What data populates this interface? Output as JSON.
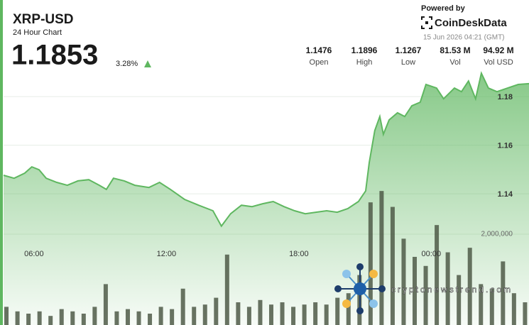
{
  "header": {
    "title": "XRP-USD",
    "subtitle": "24 Hour Chart",
    "price": 1.1853,
    "change": "3.28%",
    "stats": [
      {
        "value": "1.1476",
        "label": "Open"
      },
      {
        "value": "1.1896",
        "label": "High"
      },
      {
        "value": "1.1267",
        "label": "Low"
      },
      {
        "value": "81.53 M",
        "label": "Vol"
      },
      {
        "value": "94.92 M",
        "label": "Vol USD"
      }
    ],
    "powered_by": "Powered by",
    "brand": "CoinDeskData",
    "timestamp": "15 Jun 2026 04:21 (GMT)"
  },
  "watermark": "cryptonewstrend.com",
  "chart_data": {
    "type": "line",
    "xlim": [
      4.62,
      28.43
    ],
    "xticks": [
      {
        "value": 6,
        "label": "06:00"
      },
      {
        "value": 12,
        "label": "12:00"
      },
      {
        "value": 18,
        "label": "18:00"
      },
      {
        "value": 24,
        "label": "00:00"
      }
    ],
    "ylim": [
      1.086,
      1.192
    ],
    "yticks": [
      1.14,
      1.16,
      1.18
    ],
    "y2lim": [
      0,
      5670000
    ],
    "y2ticks": [
      {
        "value": 2000000,
        "label": "2,000,000"
      }
    ],
    "grid": true,
    "series": [
      {
        "color": "#5fb760",
        "x": [
          4.62,
          5.1,
          5.58,
          5.9,
          6.23,
          6.55,
          7.03,
          7.51,
          7.99,
          8.48,
          8.96,
          9.28,
          9.6,
          10.09,
          10.57,
          11.21,
          11.69,
          12.18,
          12.82,
          13.46,
          14.11,
          14.49,
          14.91,
          15.4,
          15.88,
          16.36,
          16.84,
          17.33,
          17.81,
          18.29,
          18.77,
          19.26,
          19.74,
          20.22,
          20.7,
          21.03,
          21.19,
          21.44,
          21.67,
          21.83,
          22.09,
          22.47,
          22.8,
          23.12,
          23.5,
          23.76,
          24.24,
          24.56,
          25.05,
          25.37,
          25.69,
          26.01,
          26.27,
          26.59,
          26.98,
          27.46,
          27.94,
          28.43
        ],
        "values": [
          1.1476,
          1.1464,
          1.1485,
          1.1511,
          1.1499,
          1.1464,
          1.1447,
          1.1435,
          1.1453,
          1.1458,
          1.1435,
          1.1418,
          1.1464,
          1.1453,
          1.1435,
          1.1426,
          1.1447,
          1.1418,
          1.1377,
          1.1353,
          1.133,
          1.1267,
          1.1318,
          1.1353,
          1.1347,
          1.1359,
          1.1368,
          1.1347,
          1.133,
          1.1318,
          1.1324,
          1.133,
          1.1324,
          1.1339,
          1.1368,
          1.1412,
          1.1528,
          1.166,
          1.1718,
          1.1645,
          1.1704,
          1.1733,
          1.1718,
          1.1762,
          1.1777,
          1.185,
          1.1835,
          1.1791,
          1.1835,
          1.182,
          1.1864,
          1.1791,
          1.1896,
          1.1835,
          1.182,
          1.1835,
          1.185,
          1.1853
        ]
      },
      {
        "type": "bar",
        "axis": "y2",
        "color": "#4f5a48",
        "x": [
          4.75,
          5.25,
          5.75,
          6.25,
          6.75,
          7.25,
          7.75,
          8.25,
          8.75,
          9.25,
          9.75,
          10.25,
          10.75,
          11.25,
          11.75,
          12.25,
          12.75,
          13.25,
          13.75,
          14.25,
          14.75,
          15.25,
          15.75,
          16.25,
          16.75,
          17.25,
          17.75,
          18.25,
          18.75,
          19.25,
          19.75,
          20.25,
          20.75,
          21.25,
          21.75,
          22.25,
          22.75,
          23.25,
          23.75,
          24.25,
          24.75,
          25.25,
          25.75,
          26.25,
          26.75,
          27.25,
          27.75,
          28.25
        ],
        "values": [
          400000,
          300000,
          250000,
          300000,
          200000,
          350000,
          300000,
          250000,
          400000,
          900000,
          300000,
          350000,
          300000,
          250000,
          400000,
          350000,
          800000,
          400000,
          450000,
          600000,
          1550000,
          500000,
          400000,
          550000,
          450000,
          500000,
          400000,
          450000,
          500000,
          450000,
          600000,
          700000,
          1100000,
          2700000,
          2950000,
          2600000,
          1900000,
          1500000,
          1300000,
          2200000,
          1600000,
          1100000,
          1700000,
          900000,
          800000,
          1400000,
          700000,
          500000
        ]
      }
    ]
  }
}
